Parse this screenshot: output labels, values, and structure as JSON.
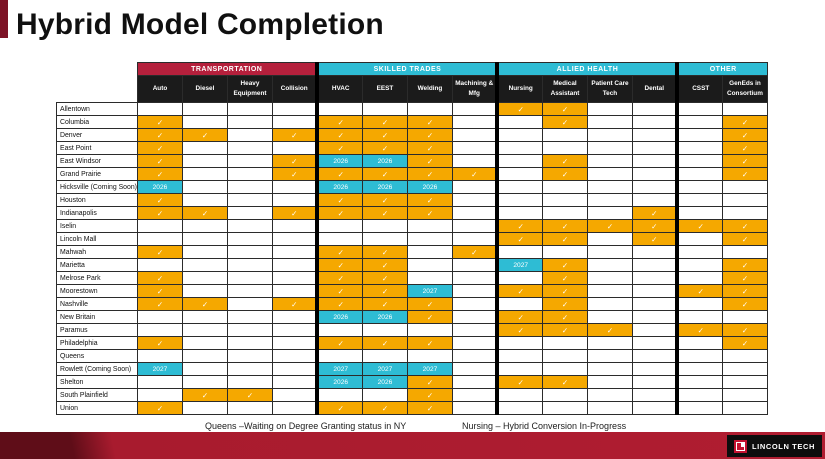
{
  "title": "Hybrid Model Completion",
  "footnotes": {
    "queens": "Queens –Waiting on Degree Granting status in NY",
    "nursing": "Nursing – Hybrid Conversion In-Progress"
  },
  "logo": {
    "text": "LINCOLN TECH"
  },
  "colors": {
    "transportation_header": "#b5203c",
    "trades_header": "#2ebcd4",
    "column_header_bg": "#1b1b1b",
    "check_cell": "#f5a800",
    "year_cell": "#2ebcd4",
    "bottom_bar": "#a81b2e"
  },
  "chart_data": {
    "type": "table",
    "title": "Hybrid Model Completion",
    "check_glyph": "✓",
    "groups": [
      {
        "label": "TRANSPORTATION",
        "color": "#b5203c",
        "columns": [
          "Auto",
          "Diesel",
          "Heavy Equipment",
          "Collision"
        ]
      },
      {
        "label": "SKILLED TRADES",
        "color": "#2ebcd4",
        "columns": [
          "HVAC",
          "EEST",
          "Welding",
          "Machining & Mfg"
        ]
      },
      {
        "label": "ALLIED HEALTH",
        "color": "#2ebcd4",
        "columns": [
          "Nursing",
          "Medical Assistant",
          "Patient Care Tech",
          "Dental"
        ]
      },
      {
        "label": "OTHER",
        "color": "#2ebcd4",
        "columns": [
          "CSST",
          "GenEds in Consortium"
        ]
      }
    ],
    "cell_legend": {
      "c": "completed (orange check)",
      "2026": "planned 2026 (cyan)",
      "2027": "planned 2027 (cyan)",
      "": "not offered"
    },
    "rows": [
      {
        "campus": "Allentown",
        "cells": [
          "",
          "",
          "",
          "",
          "",
          "",
          "",
          "",
          "c",
          "c",
          "",
          "",
          "",
          ""
        ]
      },
      {
        "campus": "Columbia",
        "cells": [
          "c",
          "",
          "",
          "",
          "c",
          "c",
          "c",
          "",
          "",
          "c",
          "",
          "",
          "",
          "c"
        ]
      },
      {
        "campus": "Denver",
        "cells": [
          "c",
          "c",
          "",
          "c",
          "c",
          "c",
          "c",
          "",
          "",
          "",
          "",
          "",
          "",
          "c"
        ]
      },
      {
        "campus": "East Point",
        "cells": [
          "c",
          "",
          "",
          "",
          "c",
          "c",
          "c",
          "",
          "",
          "",
          "",
          "",
          "",
          "c"
        ]
      },
      {
        "campus": "East Windsor",
        "cells": [
          "c",
          "",
          "",
          "c",
          "2026",
          "2026",
          "c",
          "",
          "",
          "c",
          "",
          "",
          "",
          "c"
        ]
      },
      {
        "campus": "Grand Prairie",
        "cells": [
          "c",
          "",
          "",
          "c",
          "c",
          "c",
          "c",
          "c",
          "",
          "c",
          "",
          "",
          "",
          "c"
        ]
      },
      {
        "campus": "Hicksville (Coming Soon)",
        "cells": [
          "2026",
          "",
          "",
          "",
          "2026",
          "2026",
          "2026",
          "",
          "",
          "",
          "",
          "",
          "",
          ""
        ]
      },
      {
        "campus": "Houston",
        "cells": [
          "c",
          "",
          "",
          "",
          "c",
          "c",
          "c",
          "",
          "",
          "",
          "",
          "",
          "",
          ""
        ]
      },
      {
        "campus": "Indianapolis",
        "cells": [
          "c",
          "c",
          "",
          "c",
          "c",
          "c",
          "c",
          "",
          "",
          "",
          "",
          "c",
          "",
          ""
        ]
      },
      {
        "campus": "Iselin",
        "cells": [
          "",
          "",
          "",
          "",
          "",
          "",
          "",
          "",
          "c",
          "c",
          "c",
          "c",
          "c",
          "c"
        ]
      },
      {
        "campus": "Lincoln Mall",
        "cells": [
          "",
          "",
          "",
          "",
          "",
          "",
          "",
          "",
          "c",
          "c",
          "",
          "c",
          "",
          "c"
        ]
      },
      {
        "campus": "Mahwah",
        "cells": [
          "c",
          "",
          "",
          "",
          "c",
          "c",
          "",
          "c",
          "",
          "",
          "",
          "",
          "",
          ""
        ]
      },
      {
        "campus": "Marietta",
        "cells": [
          "",
          "",
          "",
          "",
          "c",
          "c",
          "",
          "",
          "2027",
          "c",
          "",
          "",
          "",
          "c"
        ]
      },
      {
        "campus": "Melrose Park",
        "cells": [
          "c",
          "",
          "",
          "",
          "c",
          "c",
          "",
          "",
          "",
          "c",
          "",
          "",
          "",
          "c"
        ]
      },
      {
        "campus": "Moorestown",
        "cells": [
          "c",
          "",
          "",
          "",
          "c",
          "c",
          "2027",
          "",
          "c",
          "c",
          "",
          "",
          "c",
          "c"
        ]
      },
      {
        "campus": "Nashville",
        "cells": [
          "c",
          "c",
          "",
          "c",
          "c",
          "c",
          "c",
          "",
          "",
          "c",
          "",
          "",
          "",
          "c"
        ]
      },
      {
        "campus": "New Britain",
        "cells": [
          "",
          "",
          "",
          "",
          "2026",
          "2026",
          "c",
          "",
          "c",
          "c",
          "",
          "",
          "",
          ""
        ]
      },
      {
        "campus": "Paramus",
        "cells": [
          "",
          "",
          "",
          "",
          "",
          "",
          "",
          "",
          "c",
          "c",
          "c",
          "",
          "c",
          "c"
        ]
      },
      {
        "campus": "Philadelphia",
        "cells": [
          "c",
          "",
          "",
          "",
          "c",
          "c",
          "c",
          "",
          "",
          "",
          "",
          "",
          "",
          "c"
        ]
      },
      {
        "campus": "Queens",
        "cells": [
          "",
          "",
          "",
          "",
          "",
          "",
          "",
          "",
          "",
          "",
          "",
          "",
          "",
          ""
        ]
      },
      {
        "campus": "Rowlett (Coming Soon)",
        "cells": [
          "2027",
          "",
          "",
          "",
          "2027",
          "2027",
          "2027",
          "",
          "",
          "",
          "",
          "",
          "",
          ""
        ]
      },
      {
        "campus": "Shelton",
        "cells": [
          "",
          "",
          "",
          "",
          "2026",
          "2026",
          "c",
          "",
          "c",
          "c",
          "",
          "",
          "",
          ""
        ]
      },
      {
        "campus": "South Plainfield",
        "cells": [
          "",
          "c",
          "c",
          "",
          "",
          "",
          "c",
          "",
          "",
          "",
          "",
          "",
          "",
          ""
        ]
      },
      {
        "campus": "Union",
        "cells": [
          "c",
          "",
          "",
          "",
          "c",
          "c",
          "c",
          "",
          "",
          "",
          "",
          "",
          "",
          ""
        ]
      }
    ]
  }
}
